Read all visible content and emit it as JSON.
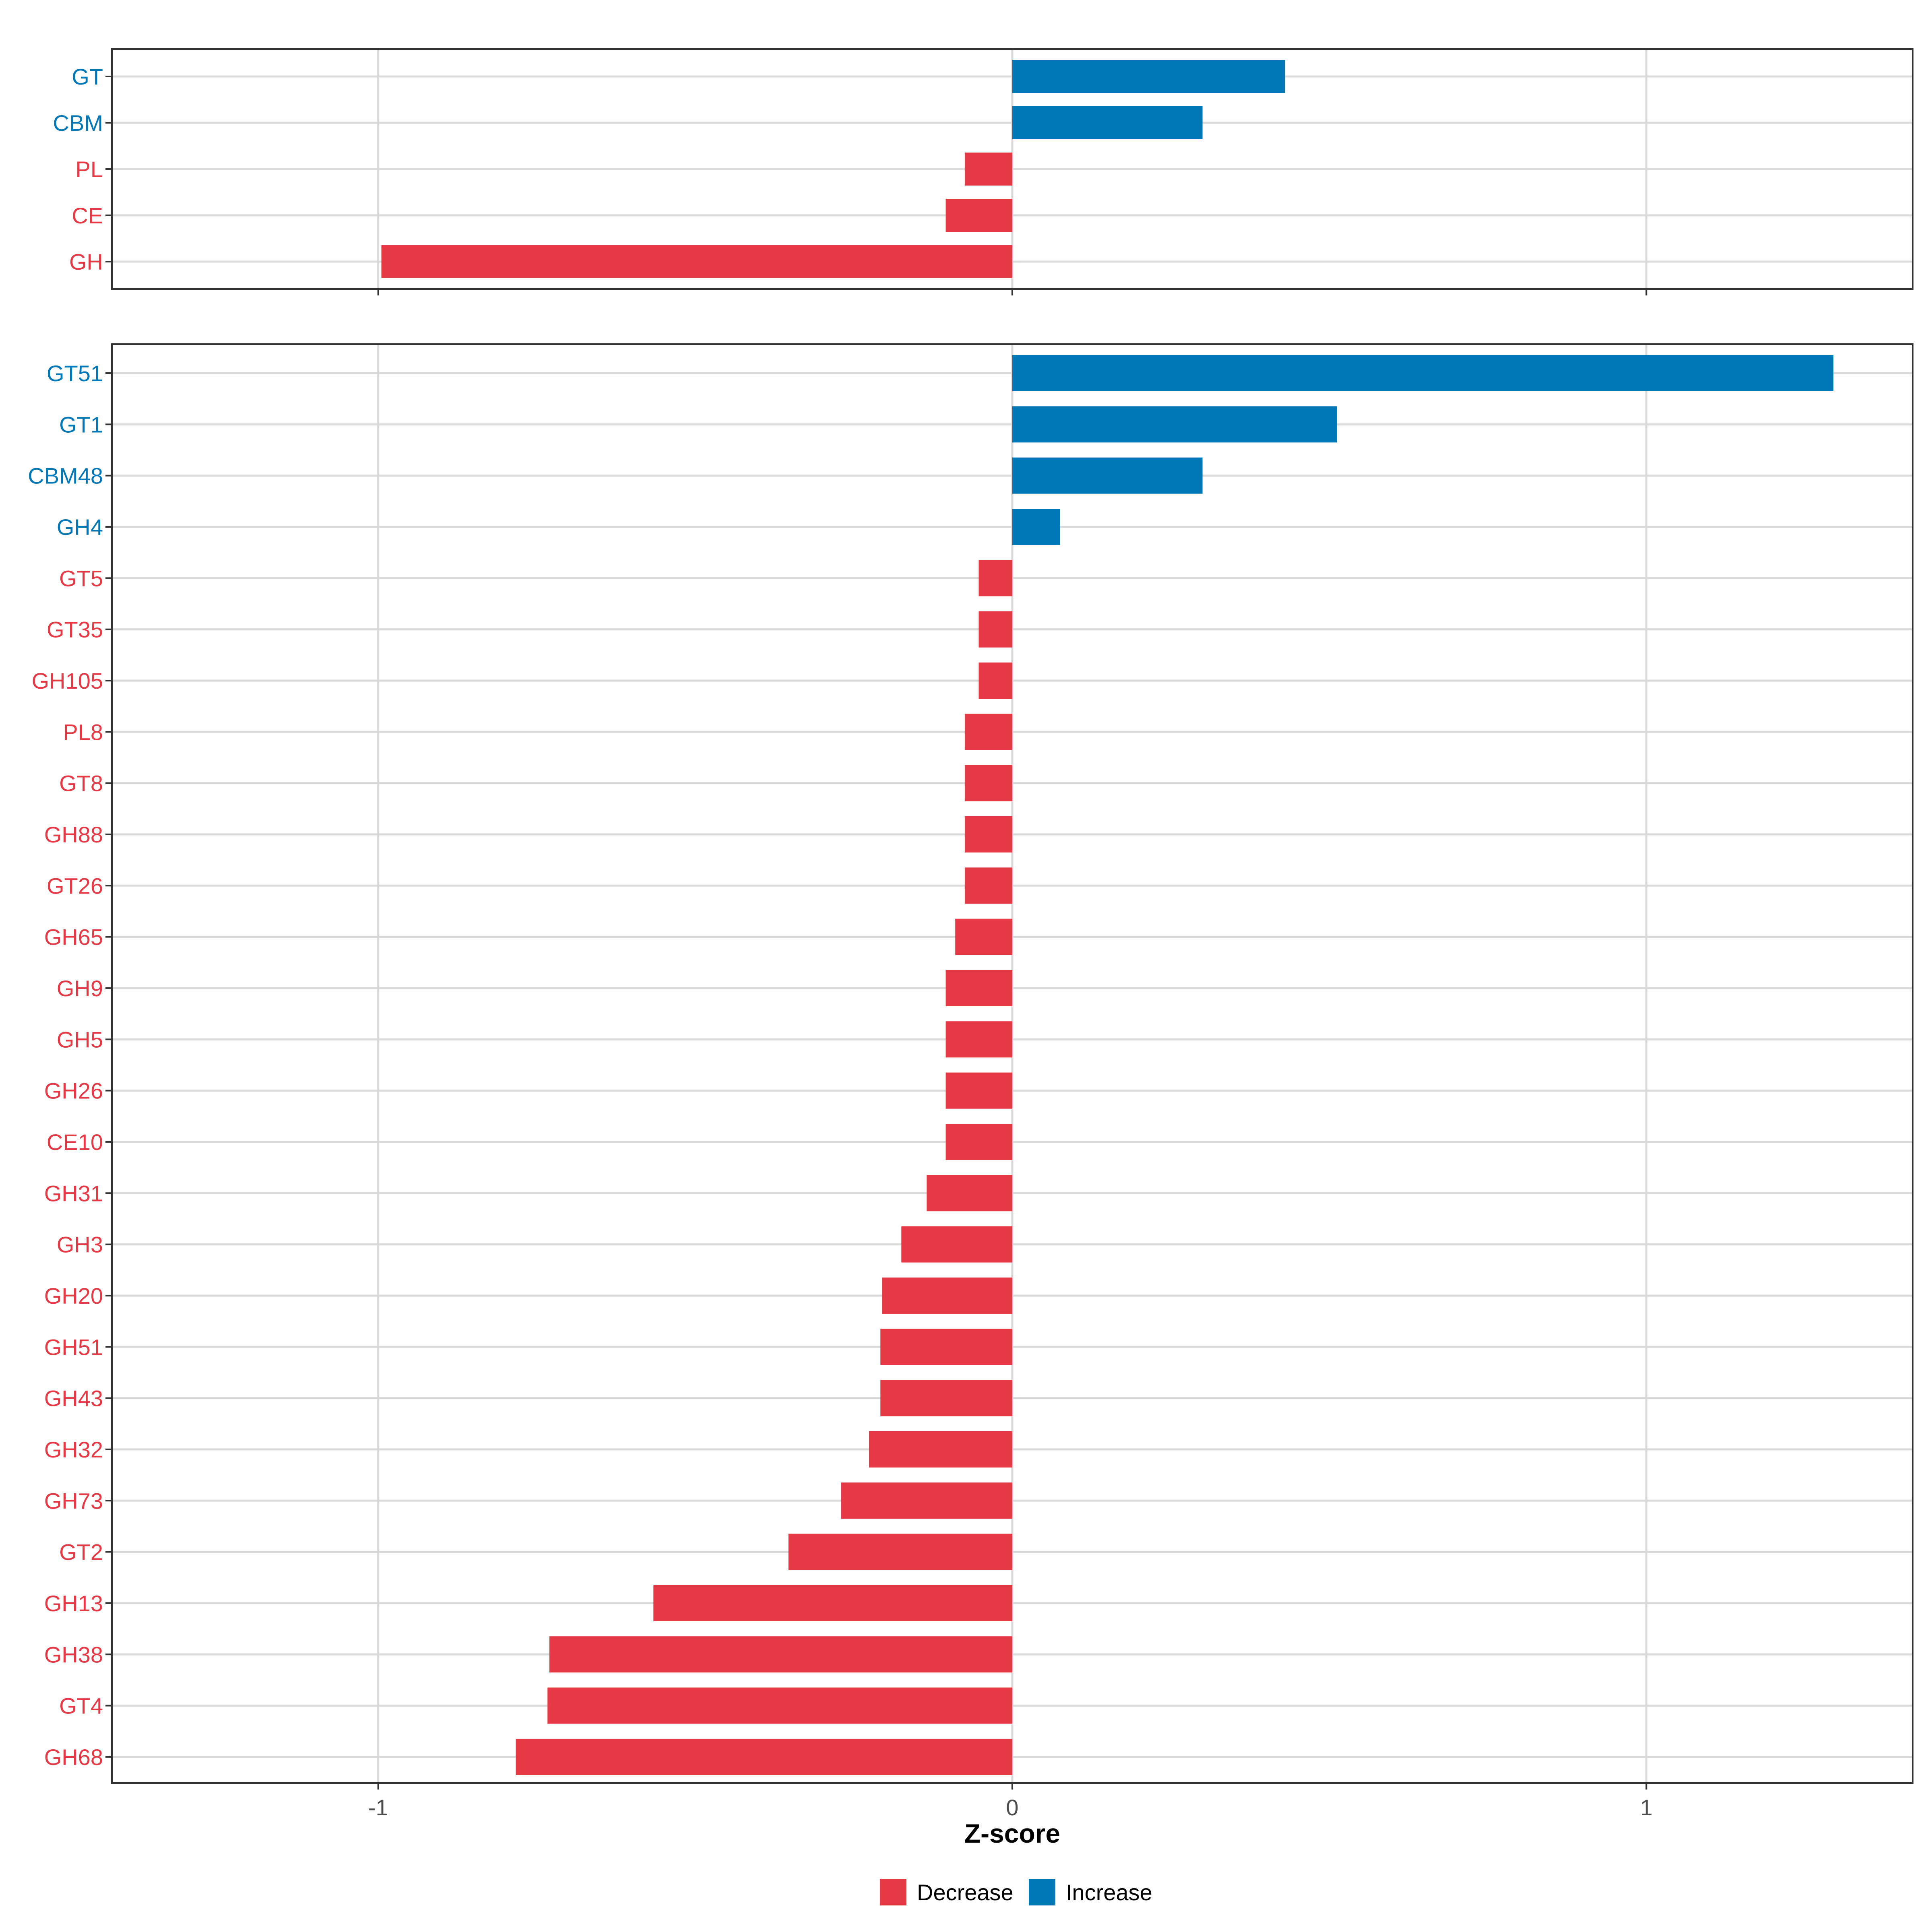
{
  "chart_data": [
    {
      "type": "bar",
      "orientation": "horizontal",
      "panel": "top",
      "categories": [
        "GT",
        "CBM",
        "PL",
        "CE",
        "GH"
      ],
      "values": [
        0.43,
        0.3,
        -0.075,
        -0.105,
        -0.995
      ],
      "xlim": [
        -1.42,
        1.42
      ],
      "xticks": [
        -1,
        0,
        1
      ],
      "grid": true
    },
    {
      "type": "bar",
      "orientation": "horizontal",
      "panel": "bottom",
      "categories": [
        "GT51",
        "GT1",
        "CBM48",
        "GH4",
        "GT5",
        "GT35",
        "GH105",
        "PL8",
        "GT8",
        "GH88",
        "GT26",
        "GH65",
        "GH9",
        "GH5",
        "GH26",
        "CE10",
        "GH31",
        "GH3",
        "GH20",
        "GH51",
        "GH43",
        "GH32",
        "GH73",
        "GT2",
        "GH13",
        "GH38",
        "GT4",
        "GH68"
      ],
      "values": [
        1.295,
        0.512,
        0.3,
        0.075,
        -0.053,
        -0.053,
        -0.053,
        -0.075,
        -0.075,
        -0.075,
        -0.075,
        -0.09,
        -0.105,
        -0.105,
        -0.105,
        -0.105,
        -0.135,
        -0.175,
        -0.205,
        -0.208,
        -0.208,
        -0.226,
        -0.27,
        -0.353,
        -0.566,
        -0.73,
        -0.733,
        -0.783
      ],
      "xlim": [
        -1.42,
        1.42
      ],
      "xticks": [
        -1,
        0,
        1
      ],
      "xtick_labels": [
        "-1",
        "0",
        "1"
      ],
      "xlabel": "Z-score",
      "grid": true
    }
  ],
  "legend": {
    "placement": "bottom",
    "items": [
      {
        "label": "Decrease",
        "color": "#E63946"
      },
      {
        "label": "Increase",
        "color": "#0077B6"
      }
    ]
  },
  "colors": {
    "decrease": "#E63946",
    "increase": "#0077B6",
    "grid": "#D9D9D9",
    "frame": "#333333"
  }
}
